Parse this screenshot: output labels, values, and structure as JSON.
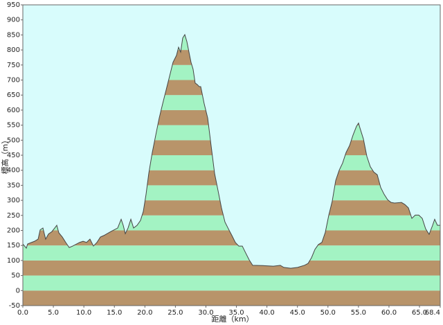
{
  "chart_data": {
    "type": "area",
    "x_label": "距離（km）",
    "y_label": "標高（m）",
    "background": "#d8fcfc",
    "band_colors": [
      "#b8946a",
      "#a3f3c3"
    ],
    "line_color": "#444444",
    "x": [
      0,
      0.57,
      0.79,
      1.93,
      2.5,
      2.84,
      3.29,
      3.74,
      4.2,
      4.76,
      5.22,
      5.56,
      5.9,
      6.47,
      7.03,
      7.6,
      8.17,
      9.3,
      9.87,
      10.44,
      11.0,
      11.57,
      12.14,
      12.71,
      13.27,
      14.41,
      15.54,
      16.11,
      16.45,
      16.79,
      17.24,
      17.7,
      18.15,
      18.72,
      19.28,
      19.74,
      20.19,
      20.64,
      21.21,
      21.78,
      22.35,
      22.91,
      23.48,
      24.05,
      24.61,
      25.18,
      25.52,
      25.86,
      26.2,
      26.54,
      26.88,
      27.22,
      27.56,
      27.9,
      28.24,
      28.58,
      28.92,
      29.15,
      29.38,
      29.72,
      30.29,
      30.85,
      31.42,
      31.99,
      32.55,
      33.12,
      33.69,
      34.26,
      34.82,
      35.39,
      35.96,
      36.52,
      37.09,
      37.66,
      39.36,
      41.06,
      42.19,
      42.76,
      43.9,
      45.03,
      46.16,
      46.73,
      47.3,
      47.87,
      48.43,
      49.0,
      49.57,
      50.14,
      50.7,
      51.27,
      51.84,
      52.4,
      52.97,
      53.54,
      54.11,
      54.67,
      55.01,
      55.24,
      55.81,
      56.38,
      56.94,
      57.51,
      58.08,
      58.64,
      59.21,
      59.78,
      60.35,
      60.91,
      62.05,
      62.61,
      63.18,
      63.75,
      64.31,
      64.88,
      65.45,
      66.01,
      66.58,
      67.15,
      67.49,
      67.94,
      68.4
    ],
    "values": [
      155,
      141,
      155,
      164,
      171,
      202,
      208,
      171,
      188,
      196,
      208,
      217,
      192,
      178,
      160,
      143,
      148,
      160,
      164,
      160,
      171,
      148,
      160,
      178,
      183,
      196,
      208,
      237,
      217,
      189,
      208,
      237,
      208,
      217,
      233,
      263,
      320,
      390,
      459,
      517,
      574,
      621,
      667,
      713,
      759,
      782,
      809,
      793,
      840,
      851,
      828,
      793,
      759,
      736,
      690,
      685,
      678,
      678,
      655,
      621,
      574,
      482,
      390,
      332,
      275,
      228,
      205,
      183,
      160,
      148,
      148,
      125,
      102,
      84,
      83,
      81,
      84,
      77,
      74,
      77,
      84,
      90,
      109,
      137,
      153,
      160,
      194,
      251,
      297,
      366,
      400,
      424,
      459,
      482,
      517,
      546,
      557,
      541,
      504,
      446,
      412,
      394,
      385,
      343,
      320,
      302,
      293,
      291,
      293,
      286,
      275,
      240,
      251,
      251,
      240,
      205,
      187,
      217,
      237,
      217,
      217
    ],
    "xlim": [
      0,
      68.4
    ],
    "xticks": [
      {
        "value": 0,
        "label": "0.0"
      },
      {
        "value": 5,
        "label": "5.0"
      },
      {
        "value": 10,
        "label": "10.0"
      },
      {
        "value": 15,
        "label": "15.0"
      },
      {
        "value": 20,
        "label": "20.0"
      },
      {
        "value": 25,
        "label": "25.0"
      },
      {
        "value": 30,
        "label": "30.0"
      },
      {
        "value": 35,
        "label": "35.0"
      },
      {
        "value": 40,
        "label": "40.0"
      },
      {
        "value": 45,
        "label": "45.0"
      },
      {
        "value": 50,
        "label": "50.0"
      },
      {
        "value": 55,
        "label": "55.0"
      },
      {
        "value": 60,
        "label": "60.0"
      },
      {
        "value": 65,
        "label": "65.0"
      },
      68.4
    ],
    "ylim": [
      -50,
      950
    ],
    "yticks": [
      -50,
      0,
      50,
      100,
      150,
      200,
      250,
      300,
      350,
      400,
      450,
      500,
      550,
      600,
      650,
      700,
      750,
      800,
      850,
      900,
      950
    ]
  }
}
